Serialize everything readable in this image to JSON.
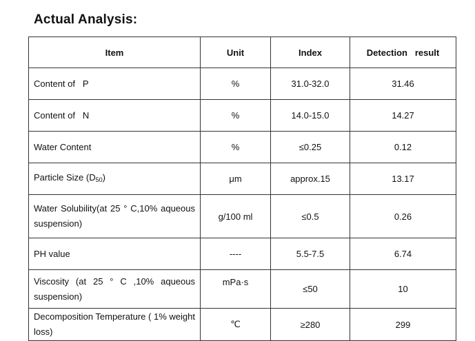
{
  "title": "Actual Analysis:",
  "table": {
    "headers": [
      "Item",
      "Unit",
      "Index",
      "Detection   result"
    ],
    "rows": [
      {
        "item": "Content of   P",
        "unit": "%",
        "index": "31.0-32.0",
        "result": "31.46"
      },
      {
        "item": "Content of   N",
        "unit": "%",
        "index": "14.0-15.0",
        "result": "14.27"
      },
      {
        "item": "Water Content",
        "unit": "%",
        "index": "≤0.25",
        "result": "0.12"
      },
      {
        "item_prefix": "Particle Size (D",
        "item_sub": "50",
        "item_suffix": ")",
        "unit": "μm",
        "index": "approx.15",
        "result": "13.17"
      },
      {
        "item": "Water   Solubility(at   25  ° C,10% aqueous suspension)",
        "unit": "g/100 ml",
        "index": "≤0.5",
        "result": "0.26"
      },
      {
        "item": "PH value",
        "unit": "----",
        "index": "5.5-7.5",
        "result": "6.74"
      },
      {
        "item": "Viscosity (at 25 ° C ,10% aqueous suspension)",
        "unit": "mPa·s",
        "index": "≤50",
        "result": "10"
      },
      {
        "item": "Decomposition  Temperature  ( 1% weight loss)",
        "unit": "℃",
        "index": "≥280",
        "result": "299"
      }
    ]
  }
}
